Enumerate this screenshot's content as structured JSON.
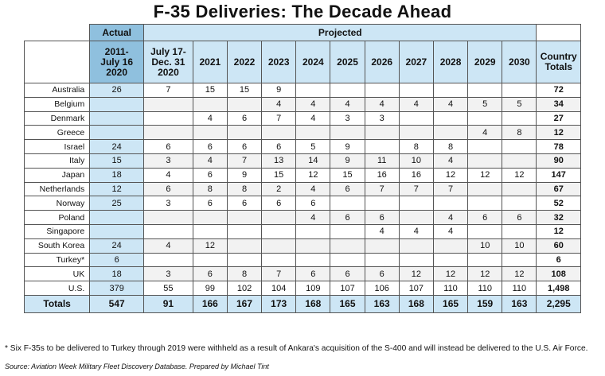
{
  "title": "F-35 Deliveries: The Decade Ahead",
  "header": {
    "actual_label": "Actual",
    "projected_label": "Projected",
    "columns": [
      "2011-\nJuly 16\n2020",
      "July 17-\nDec. 31\n2020",
      "2021",
      "2022",
      "2023",
      "2024",
      "2025",
      "2026",
      "2027",
      "2028",
      "2029",
      "2030"
    ],
    "totals_label": "Country\nTotals"
  },
  "rows": [
    {
      "country": "Australia",
      "values": [
        "26",
        "7",
        "15",
        "15",
        "9",
        "",
        "",
        "",
        "",
        "",
        "",
        ""
      ],
      "total": "72"
    },
    {
      "country": "Belgium",
      "values": [
        "",
        "",
        "",
        "",
        "4",
        "4",
        "4",
        "4",
        "4",
        "4",
        "5",
        "5"
      ],
      "total": "34"
    },
    {
      "country": "Denmark",
      "values": [
        "",
        "",
        "4",
        "6",
        "7",
        "4",
        "3",
        "3",
        "",
        "",
        "",
        ""
      ],
      "total": "27"
    },
    {
      "country": "Greece",
      "values": [
        "",
        "",
        "",
        "",
        "",
        "",
        "",
        "",
        "",
        "",
        "4",
        "8"
      ],
      "total": "12"
    },
    {
      "country": "Israel",
      "values": [
        "24",
        "6",
        "6",
        "6",
        "6",
        "5",
        "9",
        "",
        "8",
        "8",
        "",
        ""
      ],
      "total": "78"
    },
    {
      "country": "Italy",
      "values": [
        "15",
        "3",
        "4",
        "7",
        "13",
        "14",
        "9",
        "11",
        "10",
        "4",
        "",
        ""
      ],
      "total": "90"
    },
    {
      "country": "Japan",
      "values": [
        "18",
        "4",
        "6",
        "9",
        "15",
        "12",
        "15",
        "16",
        "16",
        "12",
        "12",
        "12"
      ],
      "total": "147"
    },
    {
      "country": "Netherlands",
      "values": [
        "12",
        "6",
        "8",
        "8",
        "2",
        "4",
        "6",
        "7",
        "7",
        "7",
        "",
        ""
      ],
      "total": "67"
    },
    {
      "country": "Norway",
      "values": [
        "25",
        "3",
        "6",
        "6",
        "6",
        "6",
        "",
        "",
        "",
        "",
        "",
        ""
      ],
      "total": "52"
    },
    {
      "country": "Poland",
      "values": [
        "",
        "",
        "",
        "",
        "",
        "4",
        "6",
        "6",
        "",
        "4",
        "6",
        "6"
      ],
      "total": "32"
    },
    {
      "country": "Singapore",
      "values": [
        "",
        "",
        "",
        "",
        "",
        "",
        "",
        "4",
        "4",
        "4",
        "",
        ""
      ],
      "total": "12"
    },
    {
      "country": "South Korea",
      "values": [
        "24",
        "4",
        "12",
        "",
        "",
        "",
        "",
        "",
        "",
        "",
        "10",
        "10"
      ],
      "total": "60"
    },
    {
      "country": "Turkey*",
      "values": [
        "6",
        "",
        "",
        "",
        "",
        "",
        "",
        "",
        "",
        "",
        "",
        ""
      ],
      "total": "6"
    },
    {
      "country": "UK",
      "values": [
        "18",
        "3",
        "6",
        "8",
        "7",
        "6",
        "6",
        "6",
        "12",
        "12",
        "12",
        "12"
      ],
      "total": "108"
    },
    {
      "country": "U.S.",
      "values": [
        "379",
        "55",
        "99",
        "102",
        "104",
        "109",
        "107",
        "106",
        "107",
        "110",
        "110",
        "110"
      ],
      "total": "1,498"
    }
  ],
  "totals": {
    "label": "Totals",
    "values": [
      "547",
      "91",
      "166",
      "167",
      "173",
      "168",
      "165",
      "163",
      "168",
      "165",
      "159",
      "163"
    ],
    "total": "2,295"
  },
  "footnote": "* Six F-35s to be delivered to Turkey through 2019 were withheld as a result of Ankara's acquisition of the S-400 and will instead be delivered to the U.S. Air Force.",
  "source": "Source: Aviation Week Military Fleet Discovery Database. Prepared by Michael Tint",
  "colors": {
    "header_blue": "#8fc0de",
    "light_blue": "#cde6f5"
  }
}
